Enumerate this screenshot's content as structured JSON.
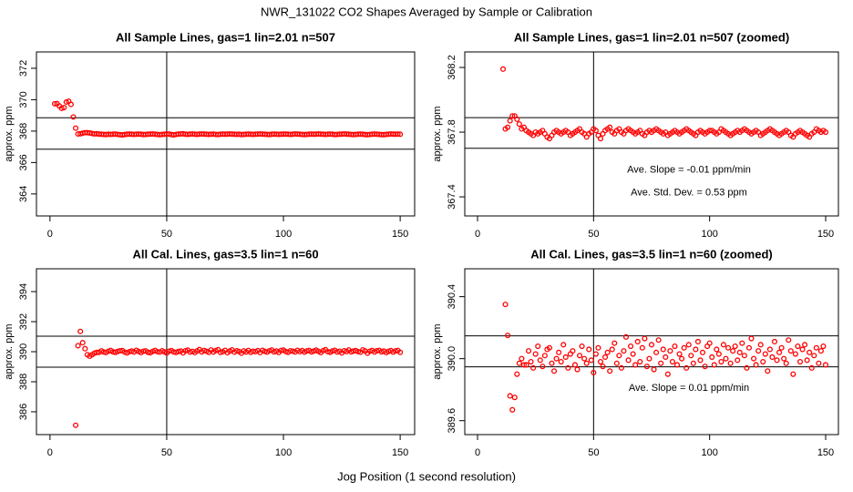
{
  "title": "NWR_131022  CO2 Shapes Averaged by Sample or Calibration",
  "x_label": "Jog Position (1 second resolution)",
  "chart_data": [
    {
      "type": "scatter",
      "title": "All Sample Lines, gas=1 lin=2.01 n=507",
      "y_label": "approx. ppm",
      "color": "#ff0000",
      "xlim": [
        -5.8,
        156.2
      ],
      "ylim": [
        362.6,
        373.04
      ],
      "xticks": [
        0,
        50,
        100,
        150
      ],
      "yticks": [
        364,
        366,
        368,
        370,
        372
      ],
      "hlines": [
        368.85,
        366.85
      ],
      "vlines": [
        50
      ],
      "annotations": [],
      "x": [
        2,
        3,
        4,
        5,
        6,
        7,
        8,
        9,
        10,
        11,
        12,
        13,
        14,
        15,
        16,
        17,
        18,
        19,
        20,
        21,
        22,
        23,
        24,
        25,
        26,
        27,
        28,
        29,
        30,
        31,
        32,
        33,
        34,
        35,
        36,
        37,
        38,
        39,
        40,
        41,
        42,
        43,
        44,
        45,
        46,
        47,
        48,
        49,
        50,
        51,
        52,
        53,
        54,
        55,
        56,
        57,
        58,
        59,
        60,
        61,
        62,
        63,
        64,
        65,
        66,
        67,
        68,
        69,
        70,
        71,
        72,
        73,
        74,
        75,
        76,
        77,
        78,
        79,
        80,
        81,
        82,
        83,
        84,
        85,
        86,
        87,
        88,
        89,
        90,
        91,
        92,
        93,
        94,
        95,
        96,
        97,
        98,
        99,
        100,
        101,
        102,
        103,
        104,
        105,
        106,
        107,
        108,
        109,
        110,
        111,
        112,
        113,
        114,
        115,
        116,
        117,
        118,
        119,
        120,
        121,
        122,
        123,
        124,
        125,
        126,
        127,
        128,
        129,
        130,
        131,
        132,
        133,
        134,
        135,
        136,
        137,
        138,
        139,
        140,
        141,
        142,
        143,
        144,
        145,
        146,
        147,
        148,
        149,
        150
      ],
      "values": [
        369.74,
        369.75,
        369.6,
        369.45,
        369.5,
        369.85,
        369.9,
        369.7,
        368.9,
        368.19,
        367.82,
        367.83,
        367.87,
        367.9,
        367.9,
        367.88,
        367.85,
        367.82,
        367.83,
        367.81,
        367.8,
        367.79,
        367.78,
        367.8,
        367.79,
        367.8,
        367.81,
        367.79,
        367.77,
        367.76,
        367.78,
        367.8,
        367.81,
        367.8,
        367.79,
        367.8,
        367.81,
        367.8,
        367.78,
        367.79,
        367.8,
        367.81,
        367.82,
        367.8,
        367.79,
        367.77,
        367.79,
        367.8,
        367.82,
        367.81,
        367.78,
        367.76,
        367.79,
        367.81,
        367.82,
        367.83,
        367.8,
        367.79,
        367.81,
        367.82,
        367.8,
        367.79,
        367.81,
        367.82,
        367.81,
        367.8,
        367.79,
        367.8,
        367.81,
        367.79,
        367.78,
        367.8,
        367.81,
        367.8,
        367.81,
        367.82,
        367.81,
        367.8,
        367.79,
        367.8,
        367.78,
        367.79,
        367.8,
        367.81,
        367.8,
        367.79,
        367.8,
        367.81,
        367.82,
        367.81,
        367.8,
        367.79,
        367.78,
        367.8,
        367.81,
        367.8,
        367.79,
        367.8,
        367.81,
        367.81,
        367.8,
        367.79,
        367.8,
        367.82,
        367.81,
        367.8,
        367.79,
        367.78,
        367.79,
        367.8,
        367.81,
        367.8,
        367.81,
        367.82,
        367.81,
        367.8,
        367.79,
        367.8,
        367.81,
        367.8,
        367.78,
        367.79,
        367.8,
        367.81,
        367.82,
        367.81,
        367.8,
        367.79,
        367.78,
        367.79,
        367.8,
        367.81,
        367.8,
        367.78,
        367.77,
        367.79,
        367.8,
        367.81,
        367.8,
        367.79,
        367.78,
        367.77,
        367.79,
        367.8,
        367.82,
        367.81,
        367.8,
        367.81,
        367.8
      ]
    },
    {
      "type": "scatter",
      "title": "All Sample Lines, gas=1 lin=2.01 n=507 (zoomed)",
      "y_label": "approx. ppm",
      "color": "#ff0000",
      "xlim": [
        -5.5,
        155.5
      ],
      "ylim": [
        367.282,
        368.296
      ],
      "xticks": [
        0,
        50,
        100,
        150
      ],
      "yticks": [
        367.4,
        367.8,
        368.2
      ],
      "hlines": [
        367.89,
        367.7
      ],
      "vlines": [
        50
      ],
      "annotations": [
        "Ave. Slope =  -0.01  ppm/min",
        "Ave. Std. Dev. =  0.53  ppm"
      ],
      "x": [
        11,
        12,
        13,
        14,
        15,
        16,
        17,
        18,
        19,
        20,
        21,
        22,
        23,
        24,
        25,
        26,
        27,
        28,
        29,
        30,
        31,
        32,
        33,
        34,
        35,
        36,
        37,
        38,
        39,
        40,
        41,
        42,
        43,
        44,
        45,
        46,
        47,
        48,
        49,
        50,
        51,
        52,
        53,
        54,
        55,
        56,
        57,
        58,
        59,
        60,
        61,
        62,
        63,
        64,
        65,
        66,
        67,
        68,
        69,
        70,
        71,
        72,
        73,
        74,
        75,
        76,
        77,
        78,
        79,
        80,
        81,
        82,
        83,
        84,
        85,
        86,
        87,
        88,
        89,
        90,
        91,
        92,
        93,
        94,
        95,
        96,
        97,
        98,
        99,
        100,
        101,
        102,
        103,
        104,
        105,
        106,
        107,
        108,
        109,
        110,
        111,
        112,
        113,
        114,
        115,
        116,
        117,
        118,
        119,
        120,
        121,
        122,
        123,
        124,
        125,
        126,
        127,
        128,
        129,
        130,
        131,
        132,
        133,
        134,
        135,
        136,
        137,
        138,
        139,
        140,
        141,
        142,
        143,
        144,
        145,
        146,
        147,
        148,
        149,
        150
      ],
      "values": [
        368.19,
        367.82,
        367.83,
        367.87,
        367.9,
        367.9,
        367.88,
        367.85,
        367.82,
        367.83,
        367.81,
        367.8,
        367.79,
        367.78,
        367.8,
        367.79,
        367.8,
        367.81,
        367.79,
        367.77,
        367.76,
        367.78,
        367.8,
        367.81,
        367.8,
        367.79,
        367.8,
        367.81,
        367.8,
        367.78,
        367.79,
        367.8,
        367.81,
        367.82,
        367.8,
        367.79,
        367.77,
        367.79,
        367.8,
        367.82,
        367.81,
        367.78,
        367.76,
        367.79,
        367.81,
        367.82,
        367.83,
        367.8,
        367.79,
        367.81,
        367.82,
        367.8,
        367.79,
        367.81,
        367.82,
        367.81,
        367.8,
        367.79,
        367.8,
        367.81,
        367.79,
        367.78,
        367.8,
        367.81,
        367.8,
        367.81,
        367.82,
        367.81,
        367.8,
        367.79,
        367.8,
        367.78,
        367.79,
        367.8,
        367.81,
        367.8,
        367.79,
        367.8,
        367.81,
        367.82,
        367.81,
        367.8,
        367.79,
        367.78,
        367.8,
        367.81,
        367.8,
        367.79,
        367.8,
        367.81,
        367.81,
        367.8,
        367.79,
        367.8,
        367.82,
        367.81,
        367.8,
        367.79,
        367.78,
        367.79,
        367.8,
        367.81,
        367.8,
        367.81,
        367.82,
        367.81,
        367.8,
        367.79,
        367.8,
        367.81,
        367.8,
        367.78,
        367.79,
        367.8,
        367.81,
        367.82,
        367.81,
        367.8,
        367.79,
        367.78,
        367.79,
        367.8,
        367.81,
        367.8,
        367.78,
        367.77,
        367.79,
        367.8,
        367.81,
        367.8,
        367.79,
        367.78,
        367.77,
        367.79,
        367.8,
        367.82,
        367.81,
        367.8,
        367.81,
        367.8
      ]
    },
    {
      "type": "scatter",
      "title": "All Cal. Lines, gas=3.5 lin=1 n=60",
      "y_label": "approx. ppm",
      "color": "#ff0000",
      "xlim": [
        -5.8,
        156.2
      ],
      "ylim": [
        384.48,
        395.52
      ],
      "xticks": [
        0,
        50,
        100,
        150
      ],
      "yticks": [
        386,
        388,
        390,
        392,
        394
      ],
      "hlines": [
        391.03,
        388.97
      ],
      "vlines": [
        50
      ],
      "annotations": [],
      "x": [
        11,
        12,
        13,
        14,
        15,
        16,
        17,
        18,
        19,
        20,
        21,
        22,
        23,
        24,
        25,
        26,
        27,
        28,
        29,
        30,
        31,
        32,
        33,
        34,
        35,
        36,
        37,
        38,
        39,
        40,
        41,
        42,
        43,
        44,
        45,
        46,
        47,
        48,
        49,
        50,
        51,
        52,
        53,
        54,
        55,
        56,
        57,
        58,
        59,
        60,
        61,
        62,
        63,
        64,
        65,
        66,
        67,
        68,
        69,
        70,
        71,
        72,
        73,
        74,
        75,
        76,
        77,
        78,
        79,
        80,
        81,
        82,
        83,
        84,
        85,
        86,
        87,
        88,
        89,
        90,
        91,
        92,
        93,
        94,
        95,
        96,
        97,
        98,
        99,
        100,
        101,
        102,
        103,
        104,
        105,
        106,
        107,
        108,
        109,
        110,
        111,
        112,
        113,
        114,
        115,
        116,
        117,
        118,
        119,
        120,
        121,
        122,
        123,
        124,
        125,
        126,
        127,
        128,
        129,
        130,
        131,
        132,
        133,
        134,
        135,
        136,
        137,
        138,
        139,
        140,
        141,
        142,
        143,
        144,
        145,
        146,
        147,
        148,
        149,
        150
      ],
      "values": [
        385.1,
        390.4,
        391.35,
        390.6,
        390.2,
        389.8,
        389.7,
        389.8,
        389.9,
        389.95,
        389.96,
        390.05,
        389.98,
        389.94,
        390.03,
        390.08,
        389.99,
        389.95,
        390.02,
        390.06,
        390.07,
        389.97,
        389.92,
        390.0,
        390.04,
        389.98,
        390.09,
        390.01,
        389.94,
        390.03,
        390.05,
        389.96,
        389.93,
        390.02,
        390.08,
        390.0,
        389.97,
        390.06,
        389.99,
        389.91,
        390.03,
        390.07,
        389.98,
        389.95,
        390.01,
        390.04,
        389.92,
        390.06,
        390.1,
        389.97,
        390.02,
        389.94,
        390.05,
        390.14,
        389.99,
        390.08,
        390.03,
        389.96,
        390.11,
        389.98,
        390.07,
        390.13,
        389.95,
        390.0,
        390.09,
        389.93,
        390.04,
        390.12,
        389.97,
        390.06,
        390.01,
        389.9,
        390.05,
        389.98,
        390.08,
        389.96,
        390.03,
        390.0,
        390.07,
        389.94,
        390.09,
        390.02,
        389.97,
        390.06,
        390.11,
        389.99,
        390.04,
        389.95,
        390.08,
        390.1,
        390.01,
        389.96,
        390.06,
        390.03,
        389.98,
        390.09,
        390.0,
        390.07,
        389.97,
        390.05,
        390.08,
        389.99,
        390.04,
        390.1,
        390.02,
        389.94,
        390.07,
        390.13,
        390.0,
        389.96,
        390.05,
        390.09,
        389.98,
        390.03,
        389.92,
        390.06,
        390.01,
        390.11,
        389.99,
        390.04,
        390.07,
        390.0,
        389.97,
        390.12,
        390.05,
        389.9,
        390.03,
        390.08,
        389.98,
        390.06,
        390.09,
        389.99,
        390.04,
        389.94,
        390.02,
        390.07,
        389.97,
        390.05,
        390.08,
        389.96
      ]
    },
    {
      "type": "scatter",
      "title": "All Cal. Lines, gas=3.5 lin=1 n=60 (zoomed)",
      "y_label": "approx. ppm",
      "color": "#ff0000",
      "xlim": [
        -5.5,
        155.5
      ],
      "ylim": [
        389.51,
        390.58
      ],
      "xticks": [
        0,
        50,
        100,
        150
      ],
      "yticks": [
        389.6,
        {
          "value": 390,
          "label": "390.0"
        },
        390.4
      ],
      "hlines": [
        390.147,
        389.947
      ],
      "vlines": [
        50
      ],
      "annotations": [
        "Ave. Slope =  0.01  ppm/min"
      ],
      "x": [
        12,
        13,
        14,
        15,
        16,
        17,
        18,
        19,
        20,
        21,
        22,
        23,
        24,
        25,
        26,
        27,
        28,
        29,
        30,
        31,
        32,
        33,
        34,
        35,
        36,
        37,
        38,
        39,
        40,
        41,
        42,
        43,
        44,
        45,
        46,
        47,
        48,
        49,
        50,
        51,
        52,
        53,
        54,
        55,
        56,
        57,
        58,
        59,
        60,
        61,
        62,
        63,
        64,
        65,
        66,
        67,
        68,
        69,
        70,
        71,
        72,
        73,
        74,
        75,
        76,
        77,
        78,
        79,
        80,
        81,
        82,
        83,
        84,
        85,
        86,
        87,
        88,
        89,
        90,
        91,
        92,
        93,
        94,
        95,
        96,
        97,
        98,
        99,
        100,
        101,
        102,
        103,
        104,
        105,
        106,
        107,
        108,
        109,
        110,
        111,
        112,
        113,
        114,
        115,
        116,
        117,
        118,
        119,
        120,
        121,
        122,
        123,
        124,
        125,
        126,
        127,
        128,
        129,
        130,
        131,
        132,
        133,
        134,
        135,
        136,
        137,
        138,
        139,
        140,
        141,
        142,
        143,
        144,
        145,
        146,
        147,
        148,
        149,
        150
      ],
      "values": [
        390.35,
        390.15,
        389.76,
        389.67,
        389.75,
        389.9,
        389.97,
        390.0,
        389.96,
        389.96,
        390.05,
        389.98,
        389.94,
        390.03,
        390.08,
        389.99,
        389.95,
        390.02,
        390.06,
        390.07,
        389.97,
        389.92,
        390.0,
        390.04,
        389.98,
        390.09,
        390.01,
        389.94,
        390.03,
        390.05,
        389.96,
        389.93,
        390.02,
        390.08,
        390.0,
        389.97,
        390.06,
        389.99,
        389.91,
        390.03,
        390.07,
        389.98,
        389.95,
        390.01,
        390.04,
        389.92,
        390.06,
        390.1,
        389.97,
        390.02,
        389.94,
        390.05,
        390.14,
        389.99,
        390.08,
        390.03,
        389.96,
        390.11,
        389.98,
        390.07,
        390.13,
        389.95,
        390.0,
        390.09,
        389.93,
        390.04,
        390.12,
        389.97,
        390.06,
        390.01,
        389.9,
        390.05,
        389.98,
        390.08,
        389.96,
        390.03,
        390.0,
        390.07,
        389.94,
        390.09,
        390.02,
        389.97,
        390.06,
        390.11,
        389.99,
        390.04,
        389.95,
        390.08,
        390.1,
        390.01,
        389.96,
        390.06,
        390.03,
        389.98,
        390.09,
        390.0,
        390.07,
        389.97,
        390.05,
        390.08,
        389.99,
        390.04,
        390.1,
        390.02,
        389.94,
        390.07,
        390.13,
        390.0,
        389.96,
        390.05,
        390.09,
        389.98,
        390.03,
        389.92,
        390.06,
        390.01,
        390.11,
        389.99,
        390.04,
        390.07,
        390.0,
        389.97,
        390.12,
        390.05,
        389.9,
        390.03,
        390.08,
        389.98,
        390.06,
        390.09,
        389.99,
        390.04,
        389.94,
        390.02,
        390.07,
        389.97,
        390.05,
        390.08,
        389.96
      ]
    }
  ]
}
